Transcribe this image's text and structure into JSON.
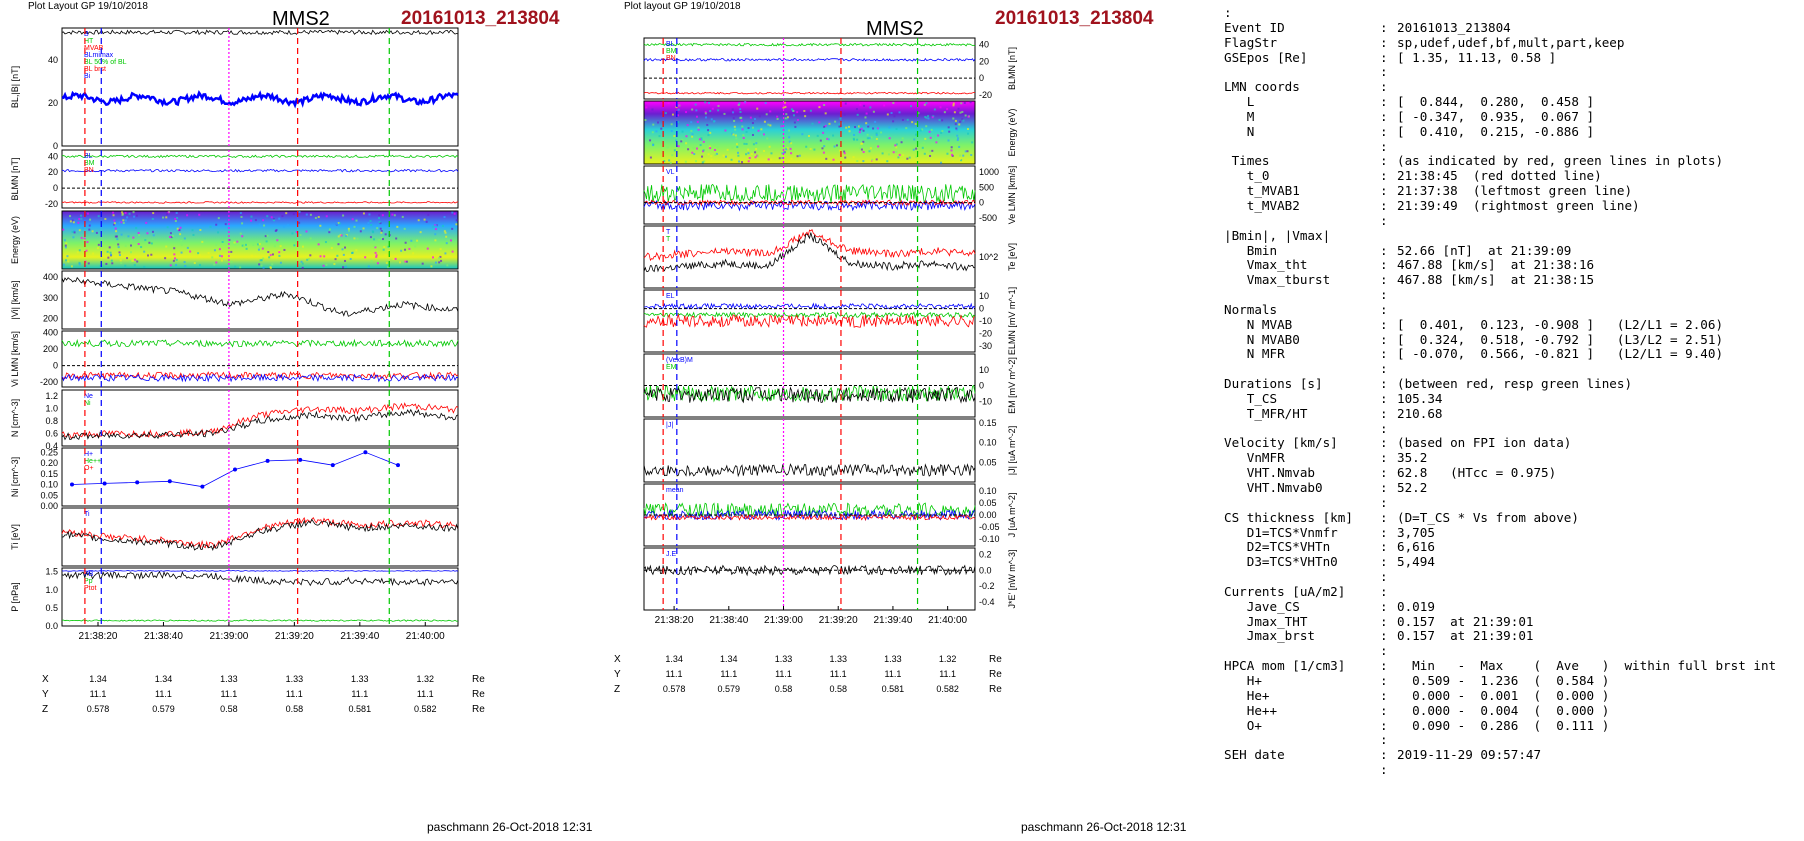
{
  "header": {
    "left": {
      "layout_label": "Plot Layout GP 19/10/2018",
      "spacecraft": "MMS2",
      "event": "20161013_213804"
    },
    "right": {
      "layout_label": "Plot layout GP 19/10/2018",
      "spacecraft": "MMS2",
      "event": "20161013_213804"
    }
  },
  "footer": {
    "left": "paschmann 26-Oct-2018 12:31",
    "right": "paschmann 26-Oct-2018 12:31"
  },
  "colors": {
    "event": "#a0121d",
    "red": "#ff0000",
    "green": "#00cc00",
    "blue": "#0000ff",
    "magenta": "#ff00ff",
    "black": "#000000",
    "gray": "#555555"
  },
  "position_table": {
    "labels": [
      "X",
      "Y",
      "Z"
    ],
    "unit": "Re",
    "rows": [
      [
        "1.34",
        "1.34",
        "1.33",
        "1.33",
        "1.33",
        "1.32"
      ],
      [
        "11.1",
        "11.1",
        "11.1",
        "11.1",
        "11.1",
        "11.1"
      ],
      [
        "0.578",
        "0.579",
        "0.58",
        "0.58",
        "0.581",
        "0.582"
      ]
    ]
  },
  "chart_data": [
    {
      "type": "line",
      "panel_set": "left",
      "time_ticks": [
        "21:38:20",
        "21:38:40",
        "21:39:00",
        "21:39:20",
        "21:39:40",
        "21:40:00"
      ],
      "time_range": [
        "21:38:09",
        "21:40:10"
      ],
      "marker_lines": [
        {
          "time": "21:38:16",
          "color": "red"
        },
        {
          "time": "21:38:21",
          "color": "blue"
        },
        {
          "time": "21:39:00",
          "color": "magenta"
        },
        {
          "time": "21:39:21",
          "color": "red"
        },
        {
          "time": "21:39:49",
          "color": "green"
        }
      ],
      "panels": [
        {
          "id": "B",
          "ylabel": "BL,|B| [nT]",
          "yticks": [
            "0",
            "20",
            "40"
          ],
          "ylim": [
            0,
            55
          ],
          "legend": [
            "B",
            "HT",
            "MVAB",
            "BLmimax",
            "BL 50% of BL",
            "BL brst",
            "Bi"
          ],
          "series": [
            {
              "name": "|B|",
              "color": "black",
              "level": 53,
              "noise": 1
            },
            {
              "name": "BL",
              "color": "blue",
              "level": 22,
              "noise": 1.5,
              "wave": 1.5
            }
          ]
        },
        {
          "id": "BLMN",
          "ylabel": "BLMN [nT]",
          "yticks": [
            "-20",
            "0",
            "20",
            "40"
          ],
          "ylim": [
            -25,
            48
          ],
          "legend": [
            "BL",
            "BM",
            "BN"
          ],
          "series": [
            {
              "name": "BL",
              "color": "blue",
              "level": 22,
              "noise": 1.5
            },
            {
              "name": "BM",
              "color": "green",
              "level": 40,
              "noise": 1.5
            },
            {
              "name": "BN",
              "color": "red",
              "level": -18,
              "noise": 1
            }
          ]
        },
        {
          "id": "spec",
          "type": "heatmap",
          "ylabel": "Energy (eV)",
          "yticks": [
            "10^1",
            "10^2",
            "10^3",
            "10^4"
          ]
        },
        {
          "id": "Vi",
          "ylabel": "|Vi| [km/s]",
          "yticks": [
            "200",
            "300",
            "400"
          ],
          "ylim": [
            150,
            430
          ],
          "series": [
            {
              "name": "|Vi|",
              "color": "black",
              "trend": [
                390,
                360,
                330,
                270,
                320,
                220,
                270,
                240
              ]
            }
          ]
        },
        {
          "id": "ViLMN",
          "ylabel": "Vi LMN [km/s]",
          "yticks": [
            "-200",
            "0",
            "200",
            "400"
          ],
          "ylim": [
            -260,
            420
          ],
          "series": [
            {
              "name": "Vi L",
              "color": "green",
              "level": 270,
              "noise": 40
            },
            {
              "name": "Vi M",
              "color": "red",
              "level": -120,
              "noise": 40
            },
            {
              "name": "Vi N",
              "color": "blue",
              "level": -150,
              "noise": 40
            }
          ]
        },
        {
          "id": "N",
          "ylabel": "N [cm^-3]",
          "yticks": [
            "0.4",
            "0.6",
            "0.8",
            "1.0",
            "1.2"
          ],
          "ylim": [
            0.4,
            1.3
          ],
          "legend": [
            "Ne",
            "Ni"
          ],
          "series": [
            {
              "name": "Ne",
              "color": "red",
              "trend": [
                0.58,
                0.6,
                0.6,
                0.62,
                0.9,
                1.0,
                0.97,
                1.05,
                0.98
              ]
            },
            {
              "name": "Ni",
              "color": "black",
              "trend": [
                0.55,
                0.57,
                0.58,
                0.6,
                0.8,
                0.9,
                0.85,
                0.95,
                0.85
              ]
            }
          ]
        },
        {
          "id": "Nhpca",
          "ylabel": "Ni [cm^-3]",
          "yticks": [
            "0.00",
            "0.05",
            "0.10",
            "0.15",
            "0.20",
            "0.25"
          ],
          "ylim": [
            0,
            0.27
          ],
          "legend": [
            "H+",
            "He++",
            "O+"
          ],
          "series": [
            {
              "name": "O+",
              "color": "blue",
              "points": [
                0.1,
                0.105,
                0.11,
                0.115,
                0.09,
                0.17,
                0.21,
                0.215,
                0.19,
                0.25,
                0.19
              ]
            }
          ]
        },
        {
          "id": "Ti",
          "ylabel": "Ti [eV]",
          "yticks": [],
          "ylim": [
            0,
            1
          ],
          "legend": [
            "Ti"
          ],
          "series": [
            {
              "name": "Ti par",
              "color": "red",
              "trend": [
                0.6,
                0.5,
                0.45,
                0.35,
                0.65,
                0.8,
                0.7,
                0.75,
                0.7
              ]
            },
            {
              "name": "Ti perp",
              "color": "black",
              "trend": [
                0.55,
                0.45,
                0.4,
                0.3,
                0.6,
                0.75,
                0.65,
                0.7,
                0.65
              ]
            }
          ]
        },
        {
          "id": "P",
          "ylabel": "P [nPa]",
          "yticks": [
            "0.0",
            "0.5",
            "1.0",
            "1.5"
          ],
          "ylim": [
            0,
            1.6
          ],
          "legend": [
            "PB",
            "Pp",
            "Ptot"
          ],
          "series": [
            {
              "name": "Ptot",
              "color": "blue",
              "level": 1.52,
              "noise": 0.01
            },
            {
              "name": "Pp",
              "color": "black",
              "trend": [
                1.4,
                1.4,
                1.4,
                1.38,
                1.25,
                1.2,
                1.25,
                1.2,
                1.25
              ]
            },
            {
              "name": "PB",
              "color": "green",
              "level": 0.15,
              "noise": 0.02
            }
          ]
        }
      ]
    },
    {
      "type": "line",
      "panel_set": "right",
      "time_ticks": [
        "21:38:20",
        "21:38:40",
        "21:39:00",
        "21:39:20",
        "21:39:40",
        "21:40:00"
      ],
      "time_range": [
        "21:38:09",
        "21:40:10"
      ],
      "marker_lines": [
        {
          "time": "21:38:16",
          "color": "red"
        },
        {
          "time": "21:38:21",
          "color": "blue"
        },
        {
          "time": "21:39:00",
          "color": "magenta"
        },
        {
          "time": "21:39:21",
          "color": "red"
        },
        {
          "time": "21:39:49",
          "color": "green"
        }
      ],
      "panels": [
        {
          "id": "BLMN",
          "ylabel": "BLMN [nT]",
          "yticks": [
            "-20",
            "0",
            "20",
            "40"
          ],
          "ylim": [
            -25,
            48
          ],
          "legend": [
            "BL",
            "BM",
            "BN"
          ],
          "series": [
            {
              "name": "BL",
              "color": "blue",
              "level": 22,
              "noise": 1.5
            },
            {
              "name": "BM",
              "color": "green",
              "level": 40,
              "noise": 1.5
            },
            {
              "name": "BN",
              "color": "red",
              "level": -18,
              "noise": 1
            }
          ]
        },
        {
          "id": "spec",
          "type": "heatmap",
          "ylabel": "Energy (eV)",
          "yticks": [
            "10^1",
            "10^2",
            "10^3",
            "10^4"
          ]
        },
        {
          "id": "Ve",
          "ylabel": "Ve LMN [km/s]",
          "yticks": [
            "-500",
            "0",
            "500",
            "1000"
          ],
          "ylim": [
            -700,
            1200
          ],
          "legend": [
            "VL"
          ],
          "series": [
            {
              "name": "Ve L",
              "color": "green",
              "level": 300,
              "noise": 300
            },
            {
              "name": "Ve M",
              "color": "blue",
              "level": -100,
              "noise": 150
            },
            {
              "name": "Ve N",
              "color": "red",
              "level": 0,
              "noise": 80
            }
          ]
        },
        {
          "id": "Te",
          "ylabel": "Te [eV]",
          "yticks": [
            "10^2"
          ],
          "ylim": [
            0,
            1
          ],
          "legend": [
            "T",
            "T"
          ],
          "series": [
            {
              "name": "Te par",
              "color": "red",
              "trend": [
                0.5,
                0.55,
                0.6,
                0.55,
                0.9,
                0.6,
                0.55,
                0.6,
                0.55
              ]
            },
            {
              "name": "Te perp",
              "color": "black",
              "trend": [
                0.3,
                0.35,
                0.4,
                0.35,
                0.85,
                0.4,
                0.35,
                0.4,
                0.3
              ]
            }
          ]
        },
        {
          "id": "E",
          "ylabel": "ELMN [mV m^-1]",
          "yticks": [
            "-30",
            "-20",
            "-10",
            "0",
            "10"
          ],
          "ylim": [
            -35,
            15
          ],
          "legend": [
            "EL"
          ],
          "series": [
            {
              "name": "E L",
              "color": "blue",
              "level": 2,
              "noise": 2
            },
            {
              "name": "E M",
              "color": "green",
              "level": -5,
              "noise": 2
            },
            {
              "name": "E N",
              "color": "red",
              "level": -10,
              "noise": 5
            }
          ]
        },
        {
          "id": "EM",
          "ylabel": "EM [mV m^-2]",
          "yticks": [
            "-10",
            "0",
            "10"
          ],
          "ylim": [
            -20,
            20
          ],
          "legend": [
            "(VexB)M",
            "EM"
          ],
          "series": [
            {
              "name": "EM",
              "color": "green",
              "level": -5,
              "noise": 5
            },
            {
              "name": "(VexB)M",
              "color": "black",
              "level": -6,
              "noise": 5
            }
          ]
        },
        {
          "id": "J",
          "ylabel": "|J| [uA m^-2]",
          "yticks": [
            "0.05",
            "0.10",
            "0.15"
          ],
          "ylim": [
            0,
            0.16
          ],
          "legend": [
            "|J|"
          ],
          "series": [
            {
              "name": "|J|",
              "color": "black",
              "level": 0.03,
              "noise": 0.015
            }
          ]
        },
        {
          "id": "JLMN",
          "ylabel": "J [uA m^-2]",
          "yticks": [
            "-0.10",
            "-0.05",
            "0.00",
            "0.05",
            "0.10"
          ],
          "ylim": [
            -0.13,
            0.13
          ],
          "legend": [
            "mean"
          ],
          "series": [
            {
              "name": "J L",
              "color": "green",
              "level": 0.02,
              "noise": 0.03
            },
            {
              "name": "J M",
              "color": "blue",
              "level": 0.0,
              "noise": 0.02
            },
            {
              "name": "J N",
              "color": "red",
              "level": -0.01,
              "noise": 0.01
            }
          ]
        },
        {
          "id": "JE",
          "ylabel": "J*E' [nW m^-3]",
          "yticks": [
            "-0.4",
            "-0.2",
            "0.0",
            "0.2"
          ],
          "ylim": [
            -0.5,
            0.28
          ],
          "legend": [
            "J.E"
          ],
          "series": [
            {
              "name": "J.E",
              "color": "black",
              "level": 0.0,
              "noise": 0.06
            }
          ]
        }
      ]
    }
  ],
  "info": {
    "rows": [
      {
        "text": ":"
      },
      {
        "key": "Event ID",
        "val": "20161013_213804"
      },
      {
        "key": "FlagStr",
        "val": "sp,udef,udef,bf,mult,part,keep"
      },
      {
        "key": "GSEpos [Re]",
        "val": "[ 1.35, 11.13, 0.58 ]"
      },
      {
        "key": "",
        "val": ""
      },
      {
        "key": "LMN coords",
        "val": ""
      },
      {
        "key": "   L",
        "val": "[  0.844,  0.280,  0.458 ]"
      },
      {
        "key": "   M",
        "val": "[ -0.347,  0.935,  0.067 ]"
      },
      {
        "key": "   N",
        "val": "[  0.410,  0.215, -0.886 ]"
      },
      {
        "key": "",
        "val": ""
      },
      {
        "key": " Times",
        "val": "(as indicated by red, green lines in plots)"
      },
      {
        "key": "   t_0",
        "val": "21:38:45  (red dotted line)"
      },
      {
        "key": "   t_MVAB1",
        "val": "21:37:38  (leftmost green line)"
      },
      {
        "key": "   t_MVAB2",
        "val": "21:39:49  (rightmost green line)"
      },
      {
        "key": "",
        "val": ""
      },
      {
        "text": "|Bmin|, |Vmax|"
      },
      {
        "key": "   Bmin",
        "val": "52.66 [nT]  at 21:39:09"
      },
      {
        "key": "   Vmax_tht",
        "val": "467.88 [km/s]  at 21:38:16"
      },
      {
        "key": "   Vmax_tburst",
        "val": "467.88 [km/s]  at 21:38:15"
      },
      {
        "key": "",
        "val": ""
      },
      {
        "key": "Normals",
        "val": ""
      },
      {
        "key": "   N MVAB",
        "val": "[  0.401,  0.123, -0.908 ]   (L2/L1 = 2.06)"
      },
      {
        "key": "   N MVAB0",
        "val": "[  0.324,  0.518, -0.792 ]   (L3/L2 = 2.51)"
      },
      {
        "key": "   N MFR",
        "val": "[ -0.070,  0.566, -0.821 ]   (L2/L1 = 9.40)"
      },
      {
        "key": "",
        "val": ""
      },
      {
        "key": "Durations [s]",
        "val": "(between red, resp green lines)"
      },
      {
        "key": "   T_CS",
        "val": "105.34"
      },
      {
        "key": "   T_MFR/HT",
        "val": "210.68"
      },
      {
        "key": "",
        "val": ""
      },
      {
        "key": "Velocity [km/s]",
        "val": "(based on FPI ion data)"
      },
      {
        "key": "   VnMFR",
        "val": "35.2"
      },
      {
        "key": "   VHT.Nmvab",
        "val": "62.8   (HTcc = 0.975)"
      },
      {
        "key": "   VHT.Nmvab0",
        "val": "52.2"
      },
      {
        "key": "",
        "val": ""
      },
      {
        "key": "CS thickness [km]",
        "val": "(D=T_CS * Vs from above)"
      },
      {
        "key": "   D1=TCS*Vnmfr",
        "val": "3,705"
      },
      {
        "key": "   D2=TCS*VHTn",
        "val": "6,616"
      },
      {
        "key": "   D3=TCS*VHTn0",
        "val": "5,494"
      },
      {
        "key": "",
        "val": ""
      },
      {
        "key": "Currents [uA/m2]",
        "val": ""
      },
      {
        "key": "   Jave_CS",
        "val": "0.019"
      },
      {
        "key": "   Jmax_THT",
        "val": "0.157  at 21:39:01"
      },
      {
        "key": "   Jmax_brst",
        "val": "0.157  at 21:39:01"
      },
      {
        "key": "",
        "val": ""
      },
      {
        "key": "HPCA mom [1/cm3]",
        "val": "  Min   -  Max    (  Ave   )  within full brst int"
      },
      {
        "key": "   H+",
        "val": "  0.509 -  1.236  (  0.584 )"
      },
      {
        "key": "   He+",
        "val": "  0.000 -  0.001  (  0.000 )"
      },
      {
        "key": "   He++",
        "val": "  0.000 -  0.004  (  0.000 )"
      },
      {
        "key": "   O+",
        "val": "  0.090 -  0.286  (  0.111 )"
      },
      {
        "key": "",
        "val": ""
      },
      {
        "key": "SEH date",
        "val": "2019-11-29 09:57:47"
      },
      {
        "key": "",
        "val": ""
      }
    ]
  }
}
